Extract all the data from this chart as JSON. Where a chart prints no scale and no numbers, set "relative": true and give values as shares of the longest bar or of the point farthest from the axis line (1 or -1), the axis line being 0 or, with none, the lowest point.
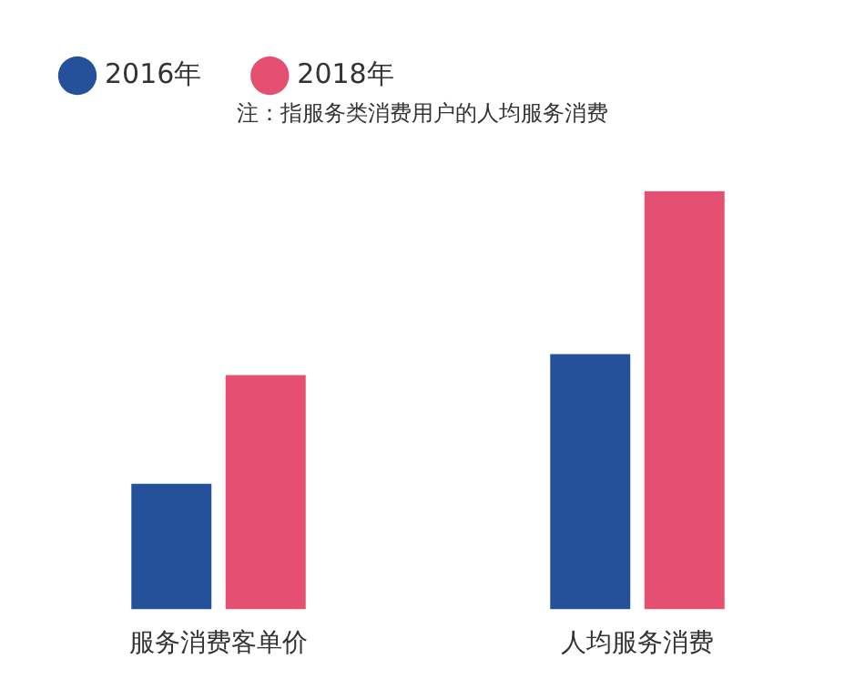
{
  "chart_data": {
    "type": "bar",
    "relative": true,
    "categories": [
      "服务消费客单价",
      "人均服务消费"
    ],
    "series": [
      {
        "name": "2016年",
        "color": "#25519b",
        "values": [
          0.3,
          0.61
        ]
      },
      {
        "name": "2018年",
        "color": "#e55072",
        "values": [
          0.56,
          1
        ]
      }
    ],
    "annotations": [
      "注：指服务类消费用户的人均服务消费"
    ],
    "legend": "top left",
    "grid": false
  }
}
